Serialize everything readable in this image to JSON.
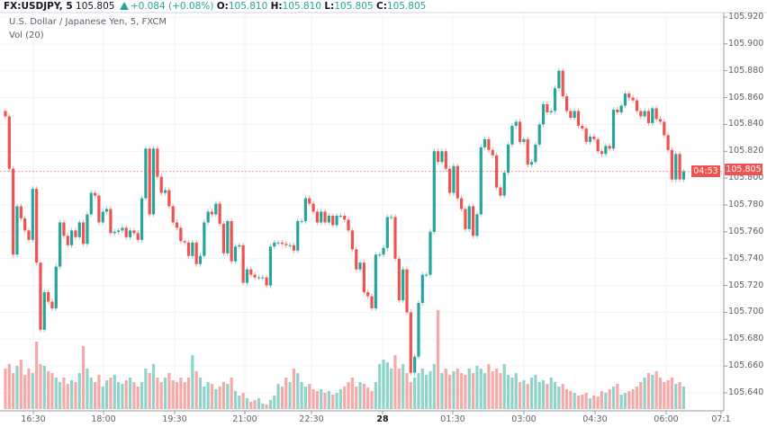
{
  "header": {
    "symbol": "FX:USDJPY, 5",
    "last": "105.805",
    "change": "+0.084 (+0.08%)",
    "o_label": "O:",
    "o": "105.810",
    "h_label": "H:",
    "h": "105.810",
    "l_label": "L:",
    "l": "105.805",
    "c_label": "C:",
    "c": "105.805",
    "description": "U.S. Dollar / Japanese Yen, 5, FXCM",
    "volume_indicator": "Vol (20)"
  },
  "price_box": {
    "value": "105.805",
    "countdown": "04:53"
  },
  "chart_data": {
    "type": "candlestick",
    "interval_minutes": 5,
    "colors": {
      "up": "#26a69a",
      "down": "#ef5350",
      "volume_up": "#8fd3cb",
      "volume_down": "#f7a9a7",
      "price_line": "#ef5350"
    },
    "ylim": [
      105.632,
      105.928
    ],
    "y_ticks": [
      "105.920",
      "105.900",
      "105.880",
      "105.860",
      "105.840",
      "105.820",
      "105.800",
      "105.780",
      "105.760",
      "105.740",
      "105.720",
      "105.700",
      "105.680",
      "105.660",
      "105.640"
    ],
    "x_ticks": [
      "16:30",
      "18:00",
      "19:30",
      "21:00",
      "22:30",
      "28",
      "01:30",
      "03:00",
      "04:30",
      "06:00",
      "07:1"
    ],
    "grid": true,
    "last_price": 105.805,
    "first_open": 105.85,
    "close": [
      105.846,
      105.807,
      105.743,
      105.779,
      105.77,
      105.761,
      105.754,
      105.792,
      105.737,
      105.687,
      105.715,
      105.708,
      105.703,
      105.734,
      105.767,
      105.757,
      105.75,
      105.761,
      105.756,
      105.767,
      105.751,
      105.773,
      105.789,
      105.787,
      105.767,
      105.775,
      105.777,
      105.759,
      105.76,
      105.761,
      105.763,
      105.756,
      105.761,
      105.759,
      105.754,
      105.785,
      105.822,
      105.773,
      105.822,
      105.801,
      105.789,
      105.791,
      105.779,
      105.767,
      105.763,
      105.753,
      105.752,
      105.742,
      105.752,
      105.736,
      105.742,
      105.767,
      105.775,
      105.773,
      105.781,
      105.766,
      105.744,
      105.768,
      105.738,
      105.749,
      105.75,
      105.722,
      105.732,
      105.728,
      105.726,
      105.726,
      105.726,
      105.72,
      105.749,
      105.752,
      105.752,
      105.751,
      105.75,
      105.75,
      105.746,
      105.768,
      105.768,
      105.785,
      105.781,
      105.775,
      105.767,
      105.775,
      105.767,
      105.772,
      105.765,
      105.772,
      105.772,
      105.769,
      105.761,
      105.747,
      105.732,
      105.737,
      105.715,
      105.712,
      105.703,
      105.743,
      105.743,
      105.748,
      105.771,
      105.771,
      105.74,
      105.709,
      105.732,
      105.7,
      105.655,
      105.667,
      105.707,
      105.728,
      105.728,
      105.76,
      105.82,
      105.812,
      105.82,
      105.807,
      105.789,
      105.809,
      105.785,
      105.777,
      105.762,
      105.779,
      105.757,
      105.773,
      105.823,
      105.829,
      105.821,
      105.817,
      105.793,
      105.787,
      105.804,
      105.825,
      105.839,
      105.842,
      105.827,
      105.829,
      105.81,
      105.812,
      105.825,
      105.84,
      105.855,
      105.849,
      105.85,
      105.867,
      105.88,
      105.861,
      105.85,
      105.845,
      105.85,
      105.839,
      105.837,
      105.827,
      105.831,
      105.829,
      105.82,
      105.818,
      105.824,
      105.822,
      105.851,
      105.849,
      105.854,
      105.863,
      105.86,
      105.858,
      105.85,
      105.846,
      105.85,
      105.841,
      105.852,
      105.844,
      105.842,
      105.832,
      105.821,
      105.799,
      105.818,
      105.799,
      105.805
    ],
    "volume": [
      45,
      50,
      40,
      48,
      55,
      38,
      45,
      40,
      75,
      50,
      48,
      42,
      40,
      35,
      30,
      35,
      28,
      32,
      30,
      40,
      70,
      45,
      35,
      30,
      38,
      25,
      32,
      35,
      38,
      30,
      28,
      32,
      35,
      30,
      25,
      30,
      45,
      40,
      50,
      35,
      30,
      35,
      40,
      32,
      30,
      35,
      30,
      35,
      60,
      42,
      35,
      25,
      30,
      28,
      22,
      25,
      30,
      28,
      35,
      20,
      15,
      18,
      12,
      8,
      10,
      12,
      6,
      5,
      10,
      15,
      28,
      25,
      35,
      30,
      45,
      40,
      30,
      25,
      28,
      22,
      20,
      22,
      18,
      20,
      16,
      18,
      22,
      25,
      30,
      35,
      25,
      30,
      28,
      24,
      20,
      30,
      50,
      55,
      52,
      45,
      60,
      45,
      50,
      40,
      30,
      35,
      40,
      45,
      38,
      42,
      50,
      110,
      40,
      45,
      38,
      42,
      45,
      40,
      38,
      45,
      40,
      48,
      45,
      40,
      50,
      42,
      45,
      40,
      50,
      38,
      35,
      40,
      30,
      32,
      28,
      35,
      38,
      30,
      32,
      28,
      35,
      30,
      25,
      28,
      22,
      20,
      18,
      15,
      16,
      18,
      12,
      15,
      14,
      20,
      18,
      22,
      25,
      28,
      16,
      18,
      20,
      22,
      25,
      30,
      35,
      40,
      38,
      42,
      35,
      30,
      32,
      35,
      28,
      30,
      25
    ]
  }
}
